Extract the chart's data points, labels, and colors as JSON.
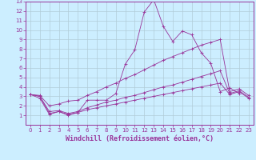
{
  "title": "Windchill (Refroidissement éolien,°C)",
  "bg_color": "#cceeff",
  "grid_color": "#b0ccd8",
  "line_color": "#993399",
  "spine_color": "#993399",
  "xlim": [
    -0.5,
    23.5
  ],
  "ylim": [
    0,
    13
  ],
  "xticks": [
    0,
    1,
    2,
    3,
    4,
    5,
    6,
    7,
    8,
    9,
    10,
    11,
    12,
    13,
    14,
    15,
    16,
    17,
    18,
    19,
    20,
    21,
    22,
    23
  ],
  "yticks": [
    1,
    2,
    3,
    4,
    5,
    6,
    7,
    8,
    9,
    10,
    11,
    12,
    13
  ],
  "series": [
    [
      3.2,
      2.8,
      1.1,
      1.4,
      1.0,
      1.3,
      2.6,
      2.6,
      2.6,
      3.3,
      6.4,
      7.9,
      11.9,
      13.2,
      10.4,
      8.8,
      9.9,
      9.5,
      7.6,
      6.5,
      3.5,
      3.9,
      3.3,
      null
    ],
    [
      3.2,
      3.1,
      2.0,
      2.2,
      2.5,
      2.6,
      3.1,
      3.5,
      4.0,
      4.4,
      4.9,
      5.3,
      5.8,
      6.3,
      6.8,
      7.2,
      7.6,
      8.0,
      8.4,
      8.7,
      9.0,
      3.5,
      3.8,
      3.1
    ],
    [
      3.2,
      3.0,
      1.4,
      1.5,
      1.2,
      1.4,
      1.8,
      2.1,
      2.4,
      2.6,
      2.9,
      3.1,
      3.4,
      3.7,
      4.0,
      4.2,
      4.5,
      4.8,
      5.1,
      5.4,
      5.7,
      3.3,
      3.6,
      2.9
    ],
    [
      3.2,
      3.0,
      1.2,
      1.4,
      1.1,
      1.3,
      1.6,
      1.8,
      2.0,
      2.2,
      2.4,
      2.6,
      2.8,
      3.0,
      3.2,
      3.4,
      3.6,
      3.8,
      4.0,
      4.2,
      4.4,
      3.2,
      3.5,
      2.8
    ]
  ],
  "xlabel_fontsize": 6,
  "tick_fontsize": 5
}
